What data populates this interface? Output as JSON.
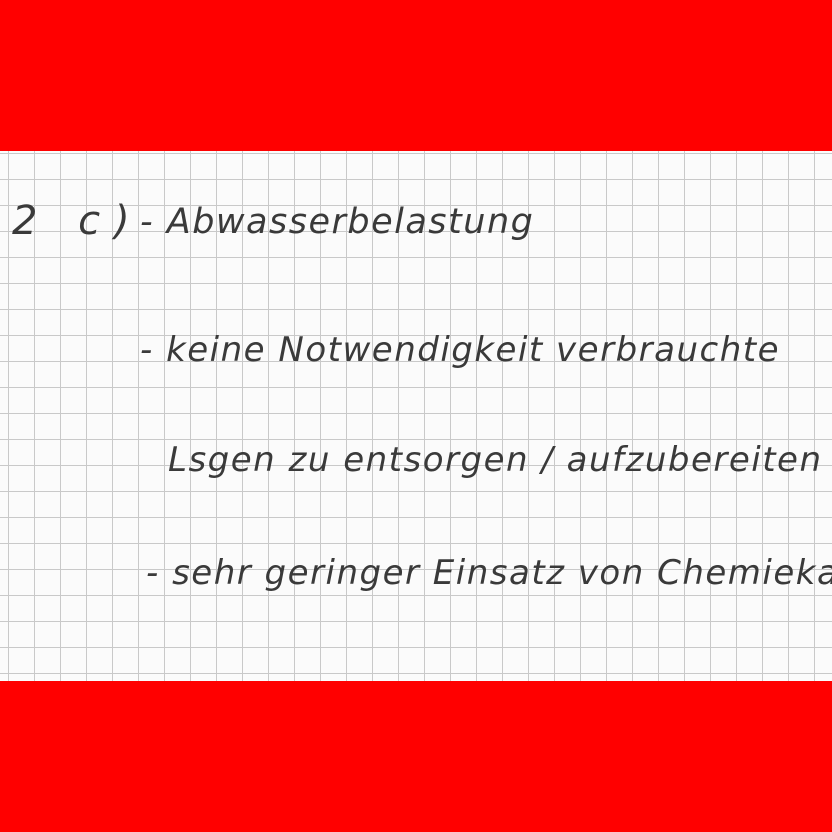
{
  "document": {
    "label": "2 c)",
    "lines": [
      "- Abwasserbelastung",
      "- keine Notwendigkeit verbrauchte",
      "Lsgen zu entsorgen / aufzubereiten",
      "- sehr geringer Einsatz von Chemiekalien"
    ]
  },
  "colors": {
    "band": "#ff0000",
    "paper": "#fbfbfb",
    "grid": "#c9c9c9",
    "ink": "#3a3a3a"
  }
}
